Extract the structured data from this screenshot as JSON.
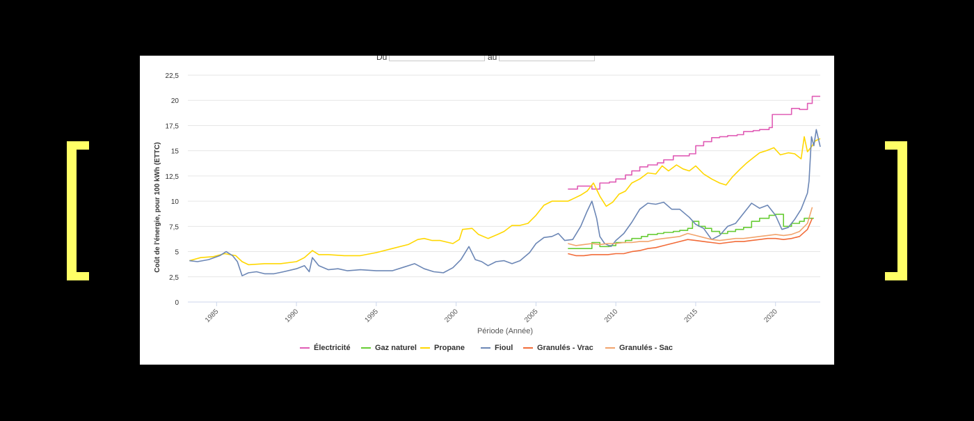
{
  "date_filter": {
    "from_label": "Du",
    "to_label": "au",
    "from_value": "",
    "to_value": ""
  },
  "colors": {
    "background": "#000000",
    "panel": "#ffffff",
    "bracket": "#ffff66",
    "grid": "#e6e6e6"
  },
  "chart_data": {
    "type": "line",
    "title": "",
    "xlabel": "Période (Année)",
    "ylabel": "Coût de l'énergie, pour 100 kWh (ETTC)",
    "xlim": [
      1983.2,
      2022.8
    ],
    "ylim": [
      0,
      22.5
    ],
    "y_ticks": [
      0,
      2.5,
      5,
      7.5,
      10,
      12.5,
      15,
      17.5,
      20,
      22.5
    ],
    "y_tick_labels": [
      "0",
      "2,5",
      "5",
      "7,5",
      "10",
      "12,5",
      "15",
      "17,5",
      "20",
      "22,5"
    ],
    "x_ticks": [
      1985,
      1990,
      1995,
      2000,
      2005,
      2010,
      2015,
      2020
    ],
    "x_tick_labels": [
      "1985",
      "1990",
      "1995",
      "2000",
      "2005",
      "2010",
      "2015",
      "2020"
    ],
    "grid": true,
    "legend_position": "bottom",
    "series": [
      {
        "name": "Électricité",
        "color": "#e05cb5",
        "step": true,
        "points": [
          [
            2007.0,
            11.2
          ],
          [
            2007.6,
            11.5
          ],
          [
            2008.0,
            11.5
          ],
          [
            2008.5,
            11.2
          ],
          [
            2009.0,
            11.8
          ],
          [
            2009.6,
            11.9
          ],
          [
            2010.0,
            12.2
          ],
          [
            2010.6,
            12.6
          ],
          [
            2011.0,
            13.0
          ],
          [
            2011.5,
            13.4
          ],
          [
            2012.0,
            13.6
          ],
          [
            2012.6,
            13.8
          ],
          [
            2013.0,
            14.1
          ],
          [
            2013.6,
            14.5
          ],
          [
            2014.0,
            14.5
          ],
          [
            2014.6,
            14.7
          ],
          [
            2015.0,
            15.5
          ],
          [
            2015.5,
            15.9
          ],
          [
            2016.0,
            16.3
          ],
          [
            2016.5,
            16.4
          ],
          [
            2017.0,
            16.5
          ],
          [
            2017.6,
            16.6
          ],
          [
            2018.0,
            16.9
          ],
          [
            2018.6,
            17.0
          ],
          [
            2019.0,
            17.1
          ],
          [
            2019.6,
            17.3
          ],
          [
            2019.8,
            18.6
          ],
          [
            2020.6,
            18.6
          ],
          [
            2021.0,
            19.2
          ],
          [
            2021.5,
            19.1
          ],
          [
            2022.0,
            19.7
          ],
          [
            2022.3,
            20.4
          ],
          [
            2022.8,
            20.4
          ]
        ]
      },
      {
        "name": "Gaz naturel",
        "color": "#66cc33",
        "step": true,
        "points": [
          [
            2007.0,
            5.3
          ],
          [
            2008.0,
            5.3
          ],
          [
            2008.5,
            5.9
          ],
          [
            2009.0,
            5.5
          ],
          [
            2009.6,
            5.6
          ],
          [
            2010.0,
            5.9
          ],
          [
            2010.6,
            6.1
          ],
          [
            2011.0,
            6.3
          ],
          [
            2011.6,
            6.5
          ],
          [
            2012.0,
            6.7
          ],
          [
            2012.6,
            6.8
          ],
          [
            2013.0,
            6.9
          ],
          [
            2013.6,
            7.0
          ],
          [
            2014.0,
            7.1
          ],
          [
            2014.5,
            7.3
          ],
          [
            2014.8,
            8.0
          ],
          [
            2015.2,
            7.5
          ],
          [
            2015.6,
            7.3
          ],
          [
            2016.0,
            7.0
          ],
          [
            2016.5,
            6.8
          ],
          [
            2017.0,
            7.0
          ],
          [
            2017.5,
            7.2
          ],
          [
            2018.0,
            7.4
          ],
          [
            2018.5,
            8.0
          ],
          [
            2019.0,
            8.3
          ],
          [
            2019.6,
            8.6
          ],
          [
            2020.0,
            8.7
          ],
          [
            2020.5,
            7.5
          ],
          [
            2021.0,
            7.8
          ],
          [
            2021.5,
            8.0
          ],
          [
            2021.8,
            8.3
          ],
          [
            2022.4,
            8.3
          ]
        ]
      },
      {
        "name": "Propane",
        "color": "#ffd700",
        "step": false,
        "points": [
          [
            1983.3,
            4.1
          ],
          [
            1984.0,
            4.4
          ],
          [
            1984.8,
            4.5
          ],
          [
            1985.5,
            4.8
          ],
          [
            1986.2,
            4.6
          ],
          [
            1986.6,
            4.0
          ],
          [
            1987.0,
            3.7
          ],
          [
            1988.0,
            3.8
          ],
          [
            1989.0,
            3.8
          ],
          [
            1990.0,
            4.0
          ],
          [
            1990.5,
            4.4
          ],
          [
            1991.0,
            5.1
          ],
          [
            1991.4,
            4.7
          ],
          [
            1992.0,
            4.7
          ],
          [
            1993.0,
            4.6
          ],
          [
            1994.0,
            4.6
          ],
          [
            1995.0,
            4.9
          ],
          [
            1996.0,
            5.3
          ],
          [
            1997.0,
            5.7
          ],
          [
            1997.6,
            6.2
          ],
          [
            1998.0,
            6.3
          ],
          [
            1998.5,
            6.1
          ],
          [
            1999.0,
            6.1
          ],
          [
            1999.8,
            5.8
          ],
          [
            2000.2,
            6.2
          ],
          [
            2000.4,
            7.2
          ],
          [
            2001.0,
            7.3
          ],
          [
            2001.4,
            6.7
          ],
          [
            2002.0,
            6.3
          ],
          [
            2002.6,
            6.7
          ],
          [
            2003.0,
            7.0
          ],
          [
            2003.5,
            7.6
          ],
          [
            2004.0,
            7.6
          ],
          [
            2004.5,
            7.8
          ],
          [
            2005.0,
            8.6
          ],
          [
            2005.5,
            9.6
          ],
          [
            2006.0,
            10.0
          ],
          [
            2007.0,
            10.0
          ],
          [
            2007.4,
            10.3
          ],
          [
            2007.8,
            10.6
          ],
          [
            2008.2,
            11.0
          ],
          [
            2008.6,
            11.8
          ],
          [
            2009.0,
            10.5
          ],
          [
            2009.4,
            9.5
          ],
          [
            2009.8,
            9.9
          ],
          [
            2010.2,
            10.7
          ],
          [
            2010.6,
            11.0
          ],
          [
            2011.0,
            11.8
          ],
          [
            2011.5,
            12.2
          ],
          [
            2012.0,
            12.8
          ],
          [
            2012.5,
            12.7
          ],
          [
            2012.9,
            13.5
          ],
          [
            2013.3,
            13.0
          ],
          [
            2013.8,
            13.6
          ],
          [
            2014.2,
            13.2
          ],
          [
            2014.6,
            13.0
          ],
          [
            2015.0,
            13.5
          ],
          [
            2015.5,
            12.7
          ],
          [
            2016.0,
            12.2
          ],
          [
            2016.5,
            11.8
          ],
          [
            2016.9,
            11.6
          ],
          [
            2017.3,
            12.4
          ],
          [
            2017.8,
            13.2
          ],
          [
            2018.2,
            13.8
          ],
          [
            2018.6,
            14.3
          ],
          [
            2019.0,
            14.8
          ],
          [
            2019.4,
            15.0
          ],
          [
            2019.9,
            15.3
          ],
          [
            2020.3,
            14.6
          ],
          [
            2020.8,
            14.8
          ],
          [
            2021.2,
            14.7
          ],
          [
            2021.6,
            14.2
          ],
          [
            2021.8,
            16.4
          ],
          [
            2022.0,
            14.9
          ],
          [
            2022.3,
            15.5
          ],
          [
            2022.5,
            16.0
          ],
          [
            2022.8,
            16.2
          ]
        ]
      },
      {
        "name": "Fioul",
        "color": "#6b86b5",
        "step": false,
        "points": [
          [
            1983.3,
            4.1
          ],
          [
            1983.8,
            4.0
          ],
          [
            1984.5,
            4.2
          ],
          [
            1985.2,
            4.6
          ],
          [
            1985.6,
            5.0
          ],
          [
            1986.0,
            4.6
          ],
          [
            1986.3,
            4.0
          ],
          [
            1986.6,
            2.6
          ],
          [
            1987.0,
            2.9
          ],
          [
            1987.5,
            3.0
          ],
          [
            1988.0,
            2.8
          ],
          [
            1988.6,
            2.8
          ],
          [
            1989.2,
            3.0
          ],
          [
            1990.0,
            3.3
          ],
          [
            1990.5,
            3.6
          ],
          [
            1990.8,
            3.0
          ],
          [
            1991.0,
            4.4
          ],
          [
            1991.4,
            3.6
          ],
          [
            1992.0,
            3.2
          ],
          [
            1992.6,
            3.3
          ],
          [
            1993.2,
            3.1
          ],
          [
            1994.0,
            3.2
          ],
          [
            1995.0,
            3.1
          ],
          [
            1996.0,
            3.1
          ],
          [
            1996.8,
            3.5
          ],
          [
            1997.4,
            3.8
          ],
          [
            1998.0,
            3.3
          ],
          [
            1998.6,
            3.0
          ],
          [
            1999.2,
            2.9
          ],
          [
            1999.8,
            3.4
          ],
          [
            2000.3,
            4.2
          ],
          [
            2000.8,
            5.5
          ],
          [
            2001.2,
            4.2
          ],
          [
            2001.6,
            4.0
          ],
          [
            2002.0,
            3.6
          ],
          [
            2002.5,
            4.0
          ],
          [
            2003.0,
            4.1
          ],
          [
            2003.5,
            3.8
          ],
          [
            2004.0,
            4.1
          ],
          [
            2004.6,
            4.9
          ],
          [
            2005.0,
            5.8
          ],
          [
            2005.5,
            6.4
          ],
          [
            2006.0,
            6.5
          ],
          [
            2006.4,
            6.8
          ],
          [
            2006.8,
            6.1
          ],
          [
            2007.3,
            6.2
          ],
          [
            2007.8,
            7.5
          ],
          [
            2008.2,
            9.0
          ],
          [
            2008.5,
            10.0
          ],
          [
            2008.8,
            8.3
          ],
          [
            2009.0,
            6.5
          ],
          [
            2009.3,
            5.8
          ],
          [
            2009.7,
            5.5
          ],
          [
            2010.0,
            6.1
          ],
          [
            2010.5,
            6.8
          ],
          [
            2011.0,
            7.9
          ],
          [
            2011.5,
            9.2
          ],
          [
            2012.0,
            9.8
          ],
          [
            2012.5,
            9.7
          ],
          [
            2013.0,
            9.9
          ],
          [
            2013.5,
            9.2
          ],
          [
            2014.0,
            9.2
          ],
          [
            2014.6,
            8.4
          ],
          [
            2015.0,
            7.7
          ],
          [
            2015.5,
            7.3
          ],
          [
            2016.0,
            6.2
          ],
          [
            2016.5,
            6.6
          ],
          [
            2017.0,
            7.5
          ],
          [
            2017.5,
            7.8
          ],
          [
            2018.0,
            8.8
          ],
          [
            2018.5,
            9.8
          ],
          [
            2019.0,
            9.3
          ],
          [
            2019.5,
            9.6
          ],
          [
            2020.0,
            8.6
          ],
          [
            2020.4,
            7.2
          ],
          [
            2020.8,
            7.4
          ],
          [
            2021.2,
            8.2
          ],
          [
            2021.6,
            9.2
          ],
          [
            2022.0,
            10.8
          ],
          [
            2022.1,
            12.0
          ],
          [
            2022.25,
            16.4
          ],
          [
            2022.4,
            15.5
          ],
          [
            2022.55,
            17.1
          ],
          [
            2022.8,
            15.4
          ]
        ]
      },
      {
        "name": "Granulés - Vrac",
        "color": "#f26b38",
        "step": false,
        "points": [
          [
            2007.0,
            4.8
          ],
          [
            2007.5,
            4.6
          ],
          [
            2008.0,
            4.6
          ],
          [
            2008.5,
            4.7
          ],
          [
            2009.0,
            4.7
          ],
          [
            2009.5,
            4.7
          ],
          [
            2010.0,
            4.8
          ],
          [
            2010.5,
            4.8
          ],
          [
            2011.0,
            5.0
          ],
          [
            2011.5,
            5.1
          ],
          [
            2012.0,
            5.3
          ],
          [
            2012.5,
            5.4
          ],
          [
            2013.0,
            5.6
          ],
          [
            2013.5,
            5.8
          ],
          [
            2014.0,
            6.0
          ],
          [
            2014.5,
            6.2
          ],
          [
            2015.0,
            6.1
          ],
          [
            2015.5,
            6.0
          ],
          [
            2016.0,
            5.9
          ],
          [
            2016.5,
            5.8
          ],
          [
            2017.0,
            5.9
          ],
          [
            2017.5,
            6.0
          ],
          [
            2018.0,
            6.0
          ],
          [
            2018.5,
            6.1
          ],
          [
            2019.0,
            6.2
          ],
          [
            2019.5,
            6.3
          ],
          [
            2020.0,
            6.3
          ],
          [
            2020.5,
            6.2
          ],
          [
            2021.0,
            6.3
          ],
          [
            2021.5,
            6.5
          ],
          [
            2022.0,
            7.2
          ],
          [
            2022.3,
            8.3
          ]
        ]
      },
      {
        "name": "Granulés - Sac",
        "color": "#f2a36b",
        "step": false,
        "points": [
          [
            2007.0,
            5.8
          ],
          [
            2007.5,
            5.6
          ],
          [
            2008.0,
            5.7
          ],
          [
            2008.5,
            5.8
          ],
          [
            2009.0,
            5.7
          ],
          [
            2009.5,
            5.8
          ],
          [
            2010.0,
            5.8
          ],
          [
            2010.5,
            5.9
          ],
          [
            2011.0,
            5.9
          ],
          [
            2011.5,
            6.0
          ],
          [
            2012.0,
            6.0
          ],
          [
            2012.5,
            6.2
          ],
          [
            2013.0,
            6.3
          ],
          [
            2013.5,
            6.4
          ],
          [
            2014.0,
            6.5
          ],
          [
            2014.5,
            6.8
          ],
          [
            2015.0,
            6.6
          ],
          [
            2015.5,
            6.4
          ],
          [
            2016.0,
            6.2
          ],
          [
            2016.5,
            6.1
          ],
          [
            2017.0,
            6.2
          ],
          [
            2017.5,
            6.3
          ],
          [
            2018.0,
            6.3
          ],
          [
            2018.5,
            6.4
          ],
          [
            2019.0,
            6.5
          ],
          [
            2019.5,
            6.6
          ],
          [
            2020.0,
            6.7
          ],
          [
            2020.5,
            6.6
          ],
          [
            2021.0,
            6.7
          ],
          [
            2021.5,
            7.0
          ],
          [
            2022.0,
            7.8
          ],
          [
            2022.3,
            9.4
          ]
        ]
      }
    ]
  }
}
